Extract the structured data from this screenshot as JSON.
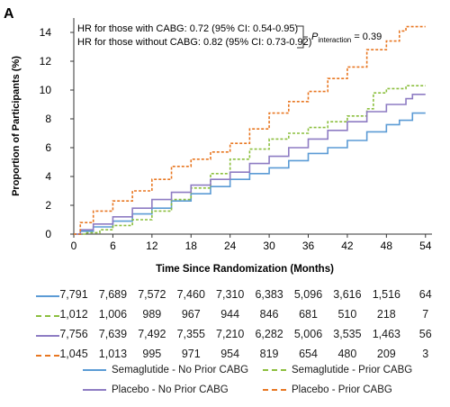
{
  "panel_label": "A",
  "annotations": {
    "hr_with": "HR for those with CABG: 0.72 (95% CI: 0.54-0.95)",
    "hr_without": "HR for those without CABG: 0.82 (95% CI: 0.73-0.92)",
    "p_symbol": "P",
    "p_subscript": "interaction",
    "p_value": " = 0.39"
  },
  "risk_table": [
    {
      "series": "Semaglutide - No Prior CABG",
      "values": [
        "7,791",
        "7,689",
        "7,572",
        "7,460",
        "7,310",
        "6,383",
        "5,096",
        "3,616",
        "1,516",
        "64"
      ]
    },
    {
      "series": "Semaglutide - Prior CABG",
      "values": [
        "1,012",
        "1,006",
        "989",
        "967",
        "944",
        "846",
        "681",
        "510",
        "218",
        "7"
      ]
    },
    {
      "series": "Placebo - No Prior CABG",
      "values": [
        "7,756",
        "7,639",
        "7,492",
        "7,355",
        "7,210",
        "6,282",
        "5,006",
        "3,535",
        "1,463",
        "56"
      ]
    },
    {
      "series": "Placebo - Prior CABG",
      "values": [
        "1,045",
        "1,013",
        "995",
        "971",
        "954",
        "819",
        "654",
        "480",
        "209",
        "3"
      ]
    }
  ],
  "legend": [
    {
      "label": "Semaglutide - No Prior CABG",
      "color": "#5b9bd5",
      "dash": "solid"
    },
    {
      "label": "Semaglutide - Prior CABG",
      "color": "#8cbf3f",
      "dash": "dashed"
    },
    {
      "label": "Placebo - No Prior CABG",
      "color": "#8e7cc3",
      "dash": "solid"
    },
    {
      "label": "Placebo - Prior CABG",
      "color": "#e87722",
      "dash": "dashed"
    }
  ],
  "chart_data": {
    "type": "line",
    "xlabel": "Time Since Randomization (Months)",
    "ylabel": "Proportion of Participants (%)",
    "xlim": [
      0,
      55
    ],
    "ylim": [
      0,
      15
    ],
    "xticks": [
      0,
      6,
      12,
      18,
      24,
      30,
      36,
      42,
      48,
      54
    ],
    "yticks": [
      0,
      2,
      4,
      6,
      8,
      10,
      12,
      14
    ],
    "series": [
      {
        "name": "Semaglutide - No Prior CABG",
        "color": "#5b9bd5",
        "dash": "solid",
        "x": [
          0,
          1,
          3,
          6,
          9,
          12,
          15,
          18,
          21,
          24,
          27,
          30,
          33,
          36,
          39,
          42,
          45,
          48,
          50,
          52,
          54
        ],
        "y": [
          0,
          0.2,
          0.5,
          0.9,
          1.4,
          1.8,
          2.3,
          2.8,
          3.3,
          3.8,
          4.2,
          4.6,
          5.1,
          5.6,
          6.0,
          6.5,
          7.1,
          7.6,
          7.9,
          8.4,
          8.4
        ]
      },
      {
        "name": "Semaglutide - Prior CABG",
        "color": "#8cbf3f",
        "dash": "dashed",
        "x": [
          0,
          2,
          4,
          6,
          9,
          12,
          15,
          18,
          21,
          24,
          27,
          30,
          33,
          36,
          39,
          42,
          45,
          46,
          48,
          51,
          54
        ],
        "y": [
          0,
          0.1,
          0.3,
          0.6,
          1.0,
          1.6,
          2.4,
          3.2,
          4.2,
          5.2,
          5.9,
          6.6,
          7.0,
          7.4,
          7.8,
          8.2,
          8.7,
          9.8,
          10.1,
          10.3,
          10.3
        ]
      },
      {
        "name": "Placebo - No Prior CABG",
        "color": "#8e7cc3",
        "dash": "solid",
        "x": [
          0,
          1,
          3,
          6,
          9,
          12,
          15,
          18,
          21,
          24,
          27,
          30,
          33,
          36,
          39,
          42,
          45,
          48,
          51,
          52,
          54
        ],
        "y": [
          0,
          0.3,
          0.7,
          1.2,
          1.8,
          2.4,
          2.9,
          3.4,
          3.8,
          4.3,
          4.9,
          5.4,
          6.0,
          6.6,
          7.2,
          7.8,
          8.5,
          9.0,
          9.4,
          9.7,
          9.7
        ]
      },
      {
        "name": "Placebo - Prior CABG",
        "color": "#e87722",
        "dash": "dashed",
        "x": [
          0,
          1,
          3,
          6,
          9,
          12,
          15,
          18,
          21,
          24,
          27,
          30,
          33,
          36,
          39,
          42,
          45,
          48,
          50,
          51,
          54
        ],
        "y": [
          0,
          0.8,
          1.6,
          2.3,
          3.0,
          3.8,
          4.7,
          5.2,
          5.7,
          6.3,
          7.3,
          8.4,
          9.2,
          9.9,
          10.8,
          11.6,
          12.8,
          13.4,
          14.1,
          14.4,
          14.4
        ]
      }
    ]
  }
}
